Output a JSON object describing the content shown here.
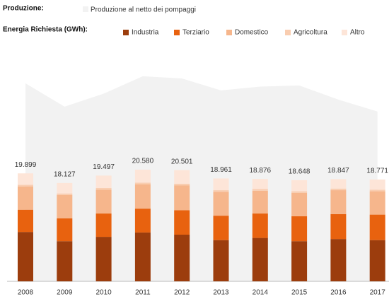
{
  "chart_data": {
    "type": "bar",
    "stacked": true,
    "production_label": "Produzione:",
    "demand_label": "Energia Richiesta (GWh):",
    "categories": [
      "2008",
      "2009",
      "2010",
      "2011",
      "2012",
      "2013",
      "2014",
      "2015",
      "2016",
      "2017"
    ],
    "area": {
      "name": "Produzione al netto dei pompaggi",
      "color": "#f2f2f2",
      "values": [
        36500,
        32200,
        34600,
        37800,
        37400,
        35200,
        35900,
        36100,
        33500,
        31300
      ]
    },
    "series": [
      {
        "name": "Industria",
        "color": "#9c3d0d",
        "values": [
          9100,
          7400,
          8200,
          9000,
          8600,
          7600,
          8000,
          7400,
          7800,
          7600
        ]
      },
      {
        "name": "Terziario",
        "color": "#e8620f",
        "values": [
          4100,
          4200,
          4300,
          4400,
          4500,
          4500,
          4500,
          4600,
          4600,
          4700
        ]
      },
      {
        "name": "Domestico",
        "color": "#f6b68c",
        "values": [
          4300,
          4300,
          4400,
          4500,
          4600,
          4400,
          4200,
          4300,
          4400,
          4300
        ]
      },
      {
        "name": "Agricoltura",
        "color": "#f9cdb0",
        "values": [
          300,
          300,
          300,
          300,
          300,
          300,
          300,
          300,
          300,
          300
        ]
      },
      {
        "name": "Altro",
        "color": "#fde5d8",
        "values": [
          2099,
          1927,
          2297,
          2380,
          2501,
          2161,
          1876,
          2048,
          1747,
          1871
        ]
      }
    ],
    "totals": {
      "values": [
        19899,
        18127,
        19497,
        20580,
        20501,
        18961,
        18876,
        18648,
        18847,
        18771
      ],
      "value_labels": [
        "19.899",
        "18.127",
        "19.497",
        "20.580",
        "20.501",
        "18.961",
        "18.876",
        "18.648",
        "18.847",
        "18.771"
      ]
    },
    "ylim": [
      0,
      40000
    ]
  }
}
